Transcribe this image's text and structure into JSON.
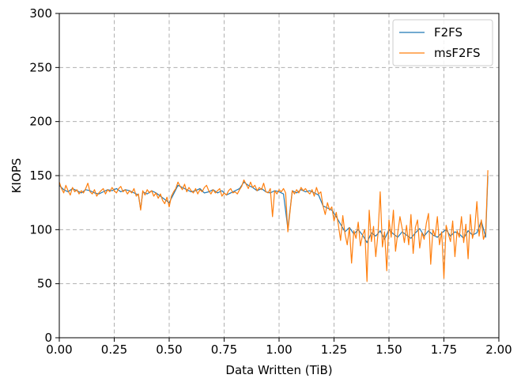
{
  "chart_data": {
    "type": "line",
    "xlabel": "Data Written (TiB)",
    "ylabel": "KIOPS",
    "xlim": [
      0,
      2.0
    ],
    "ylim": [
      0,
      300
    ],
    "x_ticks": [
      "0.00",
      "0.25",
      "0.50",
      "0.75",
      "1.00",
      "1.25",
      "1.50",
      "1.75",
      "2.00"
    ],
    "y_ticks": [
      "0",
      "50",
      "100",
      "150",
      "200",
      "250",
      "300"
    ],
    "grid": true,
    "legend_position": "top-right",
    "series": [
      {
        "name": "F2FS",
        "color": "#1f77b4",
        "x": [
          0.0,
          0.02,
          0.04,
          0.06,
          0.08,
          0.1,
          0.12,
          0.14,
          0.16,
          0.18,
          0.2,
          0.22,
          0.24,
          0.26,
          0.28,
          0.3,
          0.32,
          0.34,
          0.36,
          0.37,
          0.38,
          0.4,
          0.42,
          0.44,
          0.46,
          0.48,
          0.5,
          0.52,
          0.54,
          0.56,
          0.58,
          0.6,
          0.62,
          0.64,
          0.66,
          0.68,
          0.7,
          0.72,
          0.74,
          0.76,
          0.78,
          0.8,
          0.82,
          0.84,
          0.86,
          0.88,
          0.9,
          0.92,
          0.94,
          0.96,
          0.98,
          1.0,
          1.02,
          1.04,
          1.06,
          1.08,
          1.1,
          1.12,
          1.14,
          1.16,
          1.18,
          1.2,
          1.22,
          1.24,
          1.26,
          1.28,
          1.3,
          1.32,
          1.34,
          1.36,
          1.38,
          1.4,
          1.42,
          1.44,
          1.46,
          1.48,
          1.5,
          1.52,
          1.54,
          1.56,
          1.58,
          1.6,
          1.62,
          1.64,
          1.66,
          1.68,
          1.7,
          1.72,
          1.74,
          1.76,
          1.78,
          1.8,
          1.82,
          1.84,
          1.86,
          1.88,
          1.9,
          1.92,
          1.94,
          1.95
        ],
        "y": [
          141,
          137,
          135,
          138,
          136,
          134,
          137,
          136,
          134,
          133,
          135,
          137,
          136,
          138,
          135,
          137,
          136,
          134,
          132,
          119,
          135,
          133,
          136,
          134,
          131,
          128,
          125,
          133,
          141,
          139,
          137,
          135,
          136,
          138,
          134,
          135,
          137,
          134,
          136,
          132,
          134,
          136,
          138,
          144,
          141,
          139,
          136,
          138,
          135,
          134,
          136,
          135,
          133,
          101,
          136,
          134,
          137,
          135,
          136,
          134,
          132,
          122,
          120,
          118,
          112,
          105,
          98,
          102,
          96,
          100,
          95,
          88,
          97,
          94,
          99,
          91,
          100,
          96,
          93,
          98,
          95,
          92,
          97,
          101,
          94,
          99,
          95,
          93,
          97,
          100,
          94,
          98,
          96,
          92,
          99,
          95,
          97,
          108,
          93,
          150
        ]
      },
      {
        "name": "msF2FS",
        "color": "#ff7f0e",
        "x": [
          0.0,
          0.01,
          0.02,
          0.03,
          0.04,
          0.05,
          0.06,
          0.07,
          0.08,
          0.09,
          0.1,
          0.11,
          0.12,
          0.13,
          0.14,
          0.15,
          0.16,
          0.17,
          0.18,
          0.19,
          0.2,
          0.21,
          0.22,
          0.23,
          0.24,
          0.25,
          0.26,
          0.27,
          0.28,
          0.29,
          0.3,
          0.31,
          0.32,
          0.33,
          0.34,
          0.35,
          0.36,
          0.37,
          0.38,
          0.39,
          0.4,
          0.41,
          0.42,
          0.43,
          0.44,
          0.45,
          0.46,
          0.47,
          0.48,
          0.49,
          0.5,
          0.51,
          0.52,
          0.53,
          0.54,
          0.55,
          0.56,
          0.57,
          0.58,
          0.59,
          0.6,
          0.61,
          0.62,
          0.63,
          0.64,
          0.65,
          0.66,
          0.67,
          0.68,
          0.69,
          0.7,
          0.71,
          0.72,
          0.73,
          0.74,
          0.75,
          0.76,
          0.77,
          0.78,
          0.79,
          0.8,
          0.81,
          0.82,
          0.83,
          0.84,
          0.85,
          0.86,
          0.87,
          0.88,
          0.89,
          0.9,
          0.91,
          0.92,
          0.93,
          0.94,
          0.95,
          0.96,
          0.97,
          0.98,
          0.99,
          1.0,
          1.01,
          1.02,
          1.03,
          1.04,
          1.05,
          1.06,
          1.07,
          1.08,
          1.09,
          1.1,
          1.11,
          1.12,
          1.13,
          1.14,
          1.15,
          1.16,
          1.17,
          1.18,
          1.19,
          1.2,
          1.21,
          1.22,
          1.23,
          1.24,
          1.25,
          1.26,
          1.27,
          1.28,
          1.29,
          1.3,
          1.31,
          1.32,
          1.33,
          1.34,
          1.35,
          1.36,
          1.37,
          1.38,
          1.39,
          1.4,
          1.41,
          1.42,
          1.43,
          1.44,
          1.45,
          1.46,
          1.47,
          1.48,
          1.49,
          1.5,
          1.51,
          1.52,
          1.53,
          1.54,
          1.55,
          1.56,
          1.57,
          1.58,
          1.59,
          1.6,
          1.61,
          1.62,
          1.63,
          1.64,
          1.65,
          1.66,
          1.67,
          1.68,
          1.69,
          1.7,
          1.71,
          1.72,
          1.73,
          1.74,
          1.75,
          1.76,
          1.77,
          1.78,
          1.79,
          1.8,
          1.81,
          1.82,
          1.83,
          1.84,
          1.85,
          1.86,
          1.87,
          1.88,
          1.89,
          1.9,
          1.91,
          1.92,
          1.93,
          1.94,
          1.95
        ],
        "y": [
          144,
          138,
          134,
          141,
          136,
          132,
          139,
          135,
          137,
          133,
          136,
          134,
          138,
          143,
          135,
          133,
          137,
          131,
          134,
          136,
          138,
          133,
          137,
          135,
          139,
          136,
          134,
          138,
          140,
          135,
          137,
          133,
          136,
          134,
          138,
          131,
          133,
          118,
          136,
          132,
          137,
          134,
          136,
          131,
          134,
          129,
          133,
          127,
          124,
          130,
          121,
          131,
          135,
          138,
          144,
          140,
          137,
          142,
          135,
          139,
          136,
          134,
          138,
          133,
          137,
          135,
          139,
          141,
          136,
          133,
          137,
          134,
          136,
          138,
          131,
          134,
          132,
          136,
          138,
          134,
          135,
          133,
          137,
          140,
          146,
          142,
          138,
          144,
          139,
          141,
          136,
          139,
          137,
          143,
          135,
          134,
          138,
          112,
          136,
          133,
          137,
          135,
          138,
          134,
          98,
          117,
          136,
          133,
          137,
          134,
          139,
          136,
          138,
          135,
          133,
          137,
          131,
          139,
          133,
          135,
          122,
          114,
          125,
          118,
          121,
          108,
          116,
          104,
          90,
          113,
          96,
          86,
          102,
          69,
          99,
          92,
          107,
          85,
          95,
          100,
          52,
          118,
          89,
          103,
          75,
          96,
          135,
          84,
          98,
          62,
          109,
          93,
          118,
          80,
          97,
          112,
          101,
          88,
          104,
          86,
          114,
          78,
          102,
          109,
          83,
          97,
          91,
          106,
          115,
          68,
          100,
          94,
          112,
          86,
          98,
          55,
          104,
          96,
          89,
          108,
          75,
          99,
          93,
          112,
          88,
          105,
          73,
          114,
          92,
          100,
          126,
          94,
          109,
          91,
          97,
          155
        ]
      }
    ]
  }
}
